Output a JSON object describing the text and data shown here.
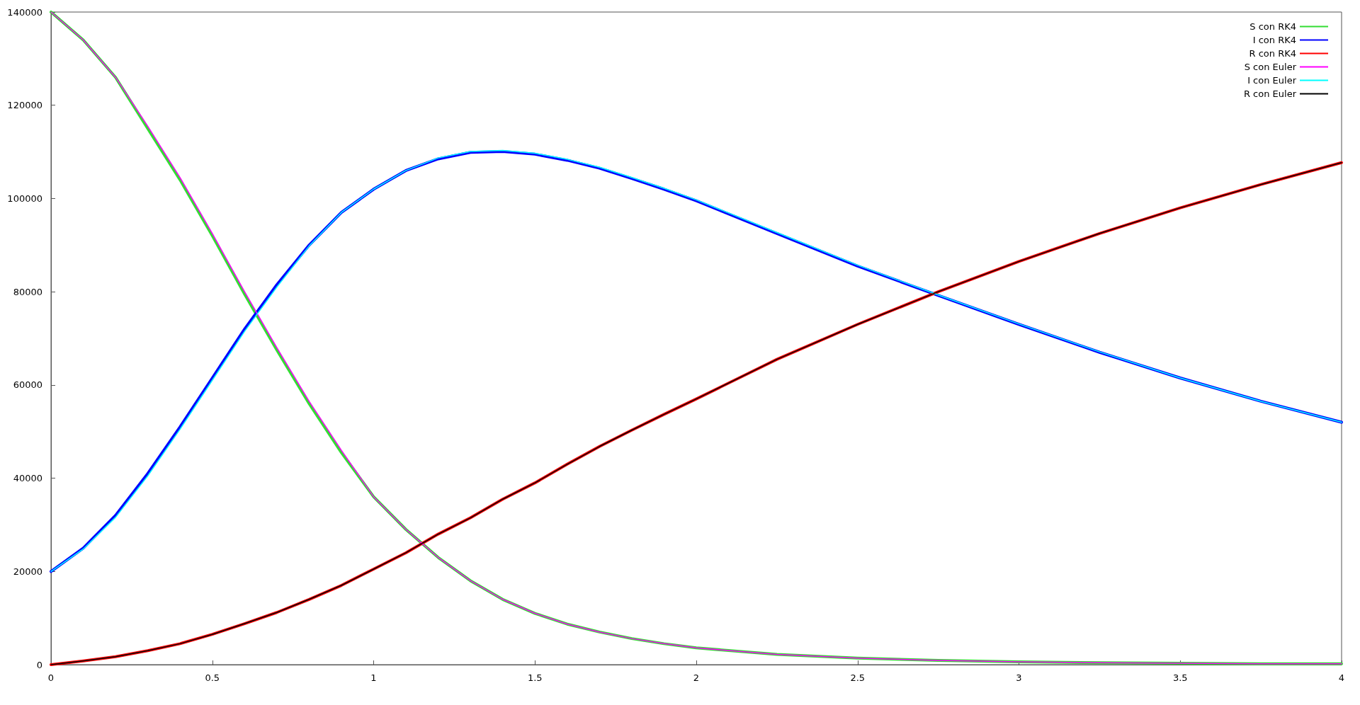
{
  "chart_data": {
    "type": "line",
    "x": [
      0,
      0.1,
      0.2,
      0.3,
      0.4,
      0.5,
      0.6,
      0.7,
      0.8,
      0.9,
      1,
      1.1,
      1.2,
      1.3,
      1.4,
      1.5,
      1.6,
      1.7,
      1.8,
      1.9,
      2,
      2.25,
      2.5,
      2.75,
      3,
      3.25,
      3.5,
      3.75,
      4
    ],
    "xlim": [
      0,
      4
    ],
    "xticks": [
      0,
      0.5,
      1,
      1.5,
      2,
      2.5,
      3,
      3.5,
      4
    ],
    "ylim": [
      0,
      140000
    ],
    "yticks": [
      0,
      20000,
      40000,
      60000,
      80000,
      100000,
      120000,
      140000
    ],
    "grid": false,
    "legend": "top right",
    "marker": "none",
    "line_style": "solid",
    "series": [
      {
        "name": "S con RK4",
        "color": "#33dd33",
        "values": [
          140000,
          134000,
          126000,
          115000,
          104000,
          92000,
          79500,
          67500,
          56000,
          45500,
          36000,
          29000,
          23000,
          18000,
          14000,
          11000,
          8700,
          7000,
          5600,
          4500,
          3600,
          2200,
          1400,
          900,
          600,
          400,
          300,
          200,
          200
        ]
      },
      {
        "name": "I con RK4",
        "color": "#0000ff",
        "values": [
          20000,
          25000,
          32000,
          41000,
          51000,
          61500,
          72000,
          81500,
          90000,
          97000,
          102000,
          106000,
          108500,
          109900,
          110100,
          109500,
          108200,
          106500,
          104300,
          102000,
          99500,
          92500,
          85500,
          79200,
          73000,
          67000,
          61500,
          56500,
          52000
        ]
      },
      {
        "name": "R con RK4",
        "color": "#ff0000",
        "values": [
          0,
          800,
          1700,
          3000,
          4500,
          6500,
          8800,
          11200,
          14000,
          17000,
          20500,
          24000,
          28000,
          31500,
          35500,
          39000,
          43000,
          46800,
          50300,
          53700,
          57000,
          65500,
          73000,
          80000,
          86500,
          92500,
          98000,
          103000,
          107700
        ]
      },
      {
        "name": "S con Euler",
        "color": "#ff00ff",
        "values": [
          140000,
          134000,
          126000,
          115500,
          104500,
          92500,
          80000,
          68000,
          56500,
          46000,
          36000,
          29000,
          23000,
          18000,
          14000,
          11000,
          8700,
          7000,
          5600,
          4500,
          3600,
          2200,
          1400,
          900,
          600,
          400,
          300,
          200,
          200
        ]
      },
      {
        "name": "I con Euler",
        "color": "#00ffff",
        "values": [
          20000,
          24800,
          31600,
          40500,
          50500,
          61000,
          71500,
          81000,
          89800,
          97000,
          102000,
          106000,
          108700,
          110100,
          110300,
          109700,
          108400,
          106700,
          104500,
          102200,
          99700,
          92700,
          85700,
          79300,
          73100,
          67100,
          61500,
          56500,
          52000
        ]
      },
      {
        "name": "R con Euler",
        "color": "#000000",
        "values": [
          0,
          800,
          1700,
          3000,
          4500,
          6500,
          8800,
          11200,
          14000,
          17000,
          20500,
          24000,
          28000,
          31500,
          35500,
          39000,
          43000,
          46800,
          50300,
          53700,
          57000,
          65500,
          73000,
          80000,
          86500,
          92500,
          98000,
          103000,
          107700
        ]
      }
    ]
  }
}
